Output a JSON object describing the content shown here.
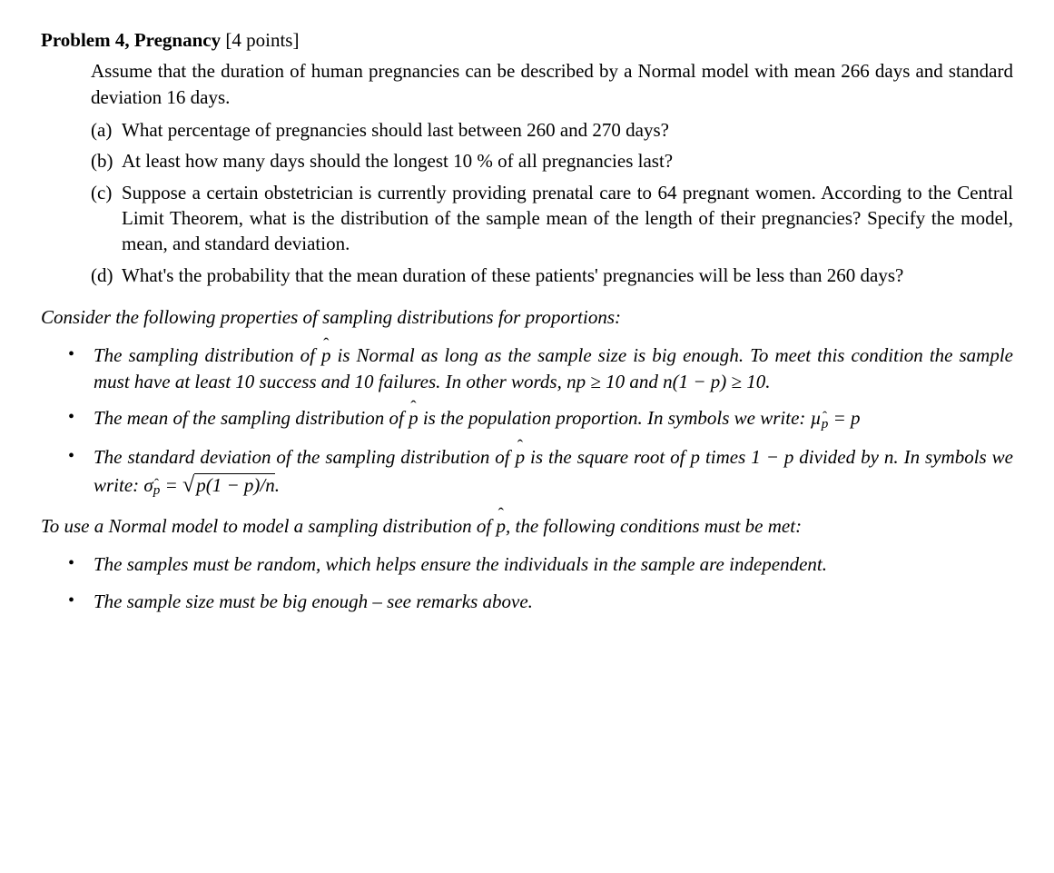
{
  "colors": {
    "text": "#000000",
    "background": "#ffffff"
  },
  "typography": {
    "body_font": "Times New Roman",
    "body_size_pt": 16,
    "bold_weight": 700,
    "italic_sections": true
  },
  "title": {
    "bold": "Problem 4, Pregnancy",
    "rest": " [4 points]"
  },
  "intro": "Assume that the duration of human pregnancies can be described by a Normal model with mean 266 days and standard deviation 16 days.",
  "parts": [
    {
      "label": "(a)",
      "text": "What percentage of pregnancies should last between 260 and 270 days?"
    },
    {
      "label": "(b)",
      "text": "At least how many days should the longest 10 % of all pregnancies last?"
    },
    {
      "label": "(c)",
      "text": "Suppose a certain obstetrician is currently providing prenatal care to 64 pregnant women. According to the Central Limit Theorem, what is the distribution of the sample mean of the length of their pregnancies? Specify the model, mean, and standard deviation."
    },
    {
      "label": "(d)",
      "text": "What's the probability that the mean duration of these patients' pregnancies will be less than 260 days?"
    }
  ],
  "consider": "Consider the following properties of sampling distributions for proportions:",
  "prop_bullets": {
    "b1_pre": "The sampling distribution of ",
    "b1_mid": " is Normal as long as the sample size is big enough. To meet this condition the sample must have at least 10 success and 10 failures. In other words, ",
    "b1_m1": "np ≥ 10",
    "b1_and": " and ",
    "b1_m2": "n(1 − p) ≥ 10",
    "b1_end": ".",
    "b2_pre": "The mean of the sampling distribution of ",
    "b2_mid": " is the population proportion. In symbols we write: ",
    "b2_eq_lhs": "µ",
    "b2_eq_rhs": " = p",
    "b3_pre": "The standard deviation of the sampling distribution of ",
    "b3_mid": " is the square root of ",
    "b3_p": "p",
    "b3_times": " times 1 − ",
    "b3_p2": "p",
    "b3_div": " divided by ",
    "b3_n": "n",
    "b3_write": ". In symbols we write: ",
    "b3_sigma": "σ",
    "b3_eq": " = ",
    "b3_rad": "p(1 − p)/n",
    "b3_end": "."
  },
  "phat": "p",
  "to_use_pre": "To use a Normal model to model a sampling distribution of ",
  "to_use_post": ", the following conditions must be met:",
  "cond_bullets": [
    "The samples must be random, which helps ensure the individuals in the sample are independent.",
    "The sample size must be big enough – see remarks above."
  ]
}
